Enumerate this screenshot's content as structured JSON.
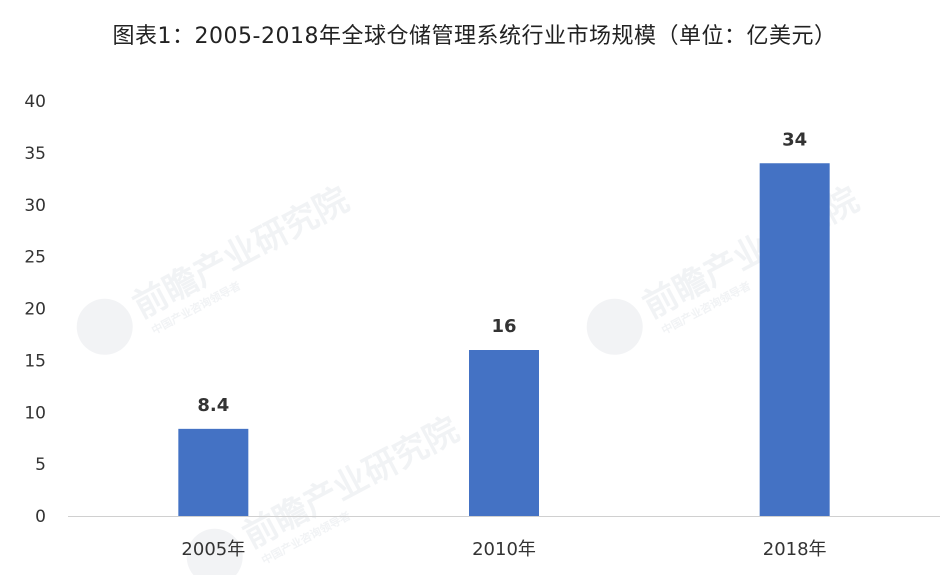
{
  "chart_data": {
    "type": "bar",
    "title": "图表1：2005-2018年全球仓储管理系统行业市场规模（单位：亿美元）",
    "categories": [
      "2005年",
      "2010年",
      "2018年"
    ],
    "values": [
      8.4,
      16,
      34
    ],
    "data_labels": [
      "8.4",
      "16",
      "34"
    ],
    "ylim": [
      0,
      40
    ],
    "yticks": [
      0,
      5,
      10,
      15,
      20,
      25,
      30,
      35,
      40
    ],
    "grid": false,
    "legend": "none",
    "bar_color": "#4472c4"
  },
  "watermark": {
    "text": "前瞻产业研究院",
    "subtext": "中国产业咨询领导者"
  }
}
